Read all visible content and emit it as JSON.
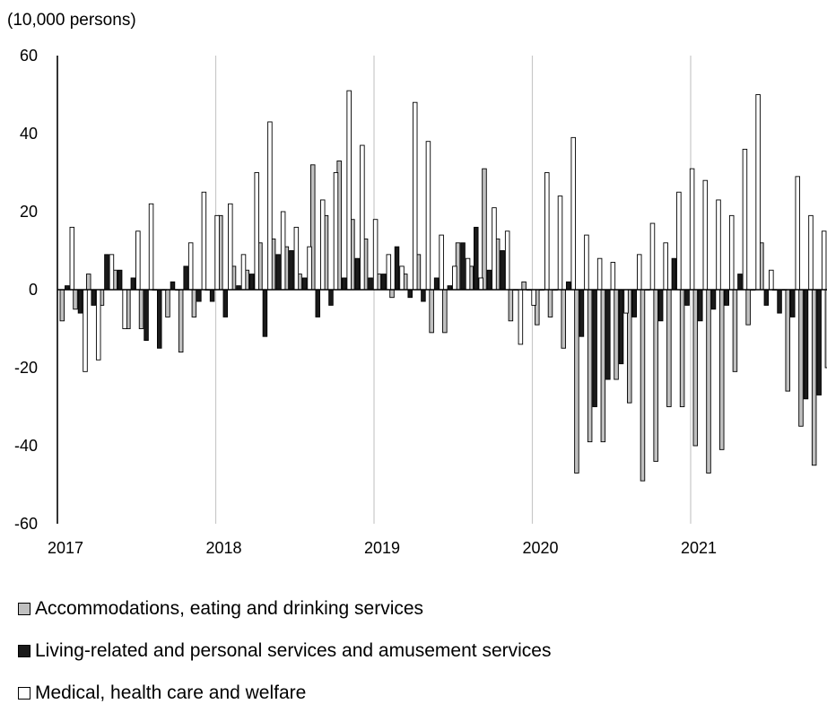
{
  "chart_data": {
    "type": "bar",
    "unit_label": "(10,000 persons)",
    "ylim": [
      -60,
      60
    ],
    "yticks": [
      -60,
      -40,
      -20,
      0,
      20,
      40,
      60
    ],
    "xlim": [
      2017,
      2021.9167
    ],
    "xticks": [
      2017,
      2018,
      2019,
      2020,
      2021
    ],
    "grid": "vertical lines at year boundaries",
    "legend_position": "bottom",
    "x": [
      2017.0,
      2017.0833,
      2017.1667,
      2017.25,
      2017.3333,
      2017.4167,
      2017.5,
      2017.5833,
      2017.6667,
      2017.75,
      2017.8333,
      2017.9167,
      2018.0,
      2018.0833,
      2018.1667,
      2018.25,
      2018.3333,
      2018.4167,
      2018.5,
      2018.5833,
      2018.6667,
      2018.75,
      2018.8333,
      2018.9167,
      2019.0,
      2019.0833,
      2019.1667,
      2019.25,
      2019.3333,
      2019.4167,
      2019.5,
      2019.5833,
      2019.6667,
      2019.75,
      2019.8333,
      2019.9167,
      2020.0,
      2020.0833,
      2020.1667,
      2020.25,
      2020.3333,
      2020.4167,
      2020.5,
      2020.5833,
      2020.6667,
      2020.75,
      2020.8333,
      2020.9167,
      2021.0,
      2021.0833,
      2021.1667,
      2021.25,
      2021.3333,
      2021.4167,
      2021.5,
      2021.5833,
      2021.6667,
      2021.75,
      2021.8333
    ],
    "series": [
      {
        "name": "Accommodations, eating and drinking services",
        "color": "#c0c0c0",
        "values": [
          -8,
          -5,
          4,
          -4,
          5,
          -10,
          -10,
          0,
          -7,
          -16,
          -7,
          0,
          19,
          6,
          5,
          12,
          13,
          11,
          4,
          32,
          19,
          33,
          18,
          13,
          4,
          -2,
          4,
          9,
          -11,
          -11,
          12,
          6,
          31,
          13,
          -8,
          2,
          -9,
          -7,
          -15,
          -47,
          -39,
          -39,
          -23,
          -29,
          -49,
          -44,
          -30,
          -30,
          -40,
          -47,
          -41,
          -21,
          -9,
          12,
          0,
          -26,
          -35,
          -45,
          -20
        ]
      },
      {
        "name": "Living-related and personal services and amusement services",
        "color": "#1a1a1a",
        "values": [
          1,
          -6,
          -4,
          9,
          5,
          3,
          -13,
          -15,
          2,
          6,
          -3,
          -3,
          -7,
          1,
          4,
          -12,
          9,
          10,
          3,
          -7,
          -4,
          3,
          8,
          3,
          4,
          11,
          -2,
          -3,
          3,
          1,
          12,
          16,
          5,
          10,
          0,
          0,
          0,
          0,
          2,
          -12,
          -30,
          -23,
          -19,
          -7,
          0,
          -8,
          8,
          -4,
          -8,
          -5,
          -4,
          4,
          0,
          -4,
          -6,
          -7,
          -28,
          -27,
          0
        ]
      },
      {
        "name": "Medical, health care and welfare",
        "color": "#ffffff",
        "values": [
          16,
          -21,
          -18,
          9,
          -10,
          15,
          22,
          0,
          0,
          12,
          25,
          19,
          22,
          9,
          30,
          43,
          20,
          16,
          11,
          23,
          30,
          51,
          37,
          18,
          9,
          6,
          48,
          38,
          14,
          6,
          8,
          3,
          21,
          15,
          -14,
          -4,
          30,
          24,
          39,
          14,
          8,
          7,
          -6,
          9,
          17,
          12,
          25,
          31,
          28,
          23,
          19,
          36,
          50,
          5,
          0,
          29,
          19,
          15,
          0
        ]
      }
    ]
  }
}
